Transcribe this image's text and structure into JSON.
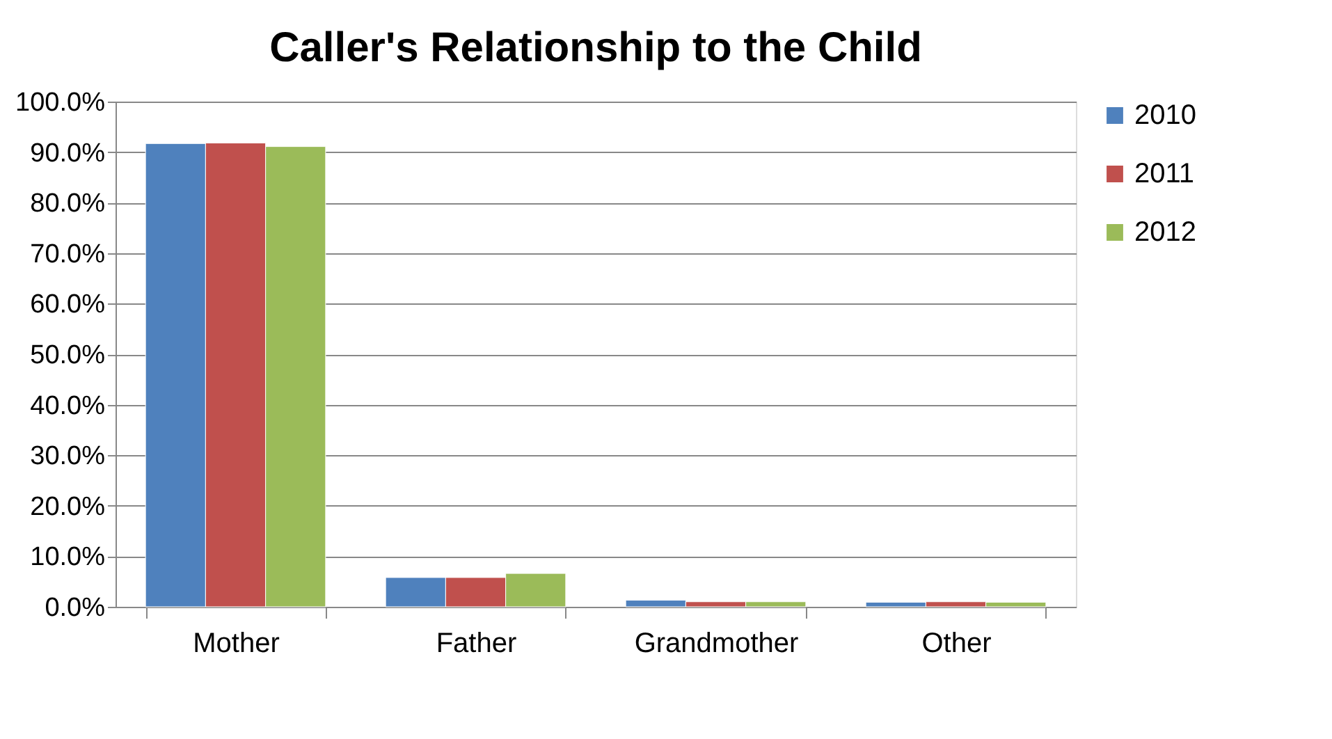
{
  "chart_data": {
    "type": "bar",
    "title": "Caller's Relationship to the Child",
    "categories": [
      "Mother",
      "Father",
      "Grandmother",
      "Other"
    ],
    "series": [
      {
        "name": "2010",
        "color": "#4f81bd",
        "values": [
          91.7,
          5.8,
          1.3,
          0.9
        ]
      },
      {
        "name": "2011",
        "color": "#c0504d",
        "values": [
          91.8,
          5.8,
          1.0,
          1.0
        ]
      },
      {
        "name": "2012",
        "color": "#9bbb59",
        "values": [
          91.1,
          6.6,
          1.0,
          0.9
        ]
      }
    ],
    "ylim": [
      0,
      100
    ],
    "yticks": [
      {
        "value": 0,
        "label": "0.0%"
      },
      {
        "value": 10,
        "label": "10.0%"
      },
      {
        "value": 20,
        "label": "20.0%"
      },
      {
        "value": 30,
        "label": "30.0%"
      },
      {
        "value": 40,
        "label": "40.0%"
      },
      {
        "value": 50,
        "label": "50.0%"
      },
      {
        "value": 60,
        "label": "60.0%"
      },
      {
        "value": 70,
        "label": "70.0%"
      },
      {
        "value": 80,
        "label": "80.0%"
      },
      {
        "value": 90,
        "label": "90.0%"
      },
      {
        "value": 100,
        "label": "100.0%"
      }
    ],
    "grid": "y",
    "legend": "right"
  }
}
